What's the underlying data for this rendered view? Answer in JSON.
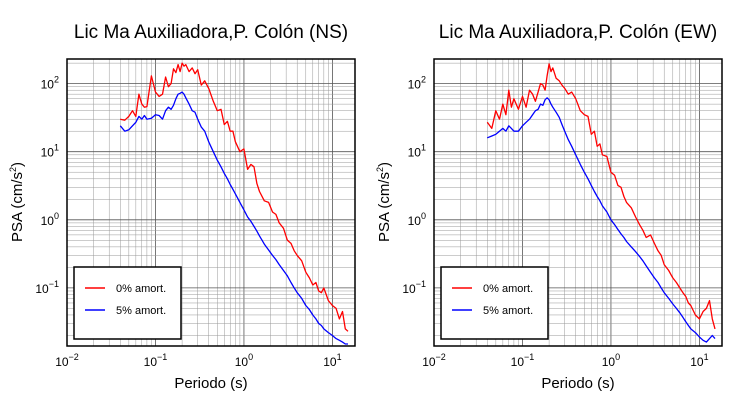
{
  "chart_data": [
    {
      "type": "line",
      "title": "Lic Ma Auxiliadora,P. Colón (NS)",
      "xlabel": "Periodo (s)",
      "ylabel": "PSA (cm/s²)",
      "ylabel_base": "PSA (cm/s",
      "ylabel_exp": "2",
      "ylabel_end": ")",
      "x_scale": "log",
      "y_scale": "log",
      "xlim": [
        0.01,
        18
      ],
      "ylim": [
        0.014,
        230
      ],
      "grid": true,
      "legend_position": "bottom-left",
      "x_ticks": [
        {
          "base": "10",
          "exp": "−2"
        },
        {
          "base": "10",
          "exp": "−1"
        },
        {
          "base": "10",
          "exp": "0"
        },
        {
          "base": "10",
          "exp": "1"
        }
      ],
      "y_ticks": [
        {
          "base": "10",
          "exp": "−1"
        },
        {
          "base": "10",
          "exp": "0"
        },
        {
          "base": "10",
          "exp": "1"
        },
        {
          "base": "10",
          "exp": "2"
        }
      ],
      "series": [
        {
          "name": "0% amort.",
          "color": "#ff0000",
          "x": [
            0.04,
            0.045,
            0.05,
            0.055,
            0.06,
            0.065,
            0.07,
            0.075,
            0.08,
            0.09,
            0.1,
            0.11,
            0.12,
            0.13,
            0.14,
            0.15,
            0.16,
            0.17,
            0.18,
            0.19,
            0.2,
            0.21,
            0.22,
            0.24,
            0.26,
            0.28,
            0.3,
            0.33,
            0.36,
            0.4,
            0.45,
            0.5,
            0.55,
            0.6,
            0.65,
            0.7,
            0.75,
            0.8,
            0.9,
            1.0,
            1.1,
            1.2,
            1.3,
            1.4,
            1.5,
            1.7,
            1.9,
            2.1,
            2.3,
            2.5,
            2.8,
            3.1,
            3.4,
            3.7,
            4.0,
            4.5,
            5.0,
            5.5,
            6.0,
            6.5,
            7.0,
            7.5,
            8.0,
            9.0,
            10.0,
            11.0,
            12.0,
            13.0,
            14.0,
            15.0
          ],
          "y": [
            30,
            29,
            33,
            40,
            33,
            70,
            50,
            45,
            46,
            130,
            75,
            65,
            70,
            125,
            90,
            100,
            165,
            145,
            190,
            150,
            200,
            180,
            190,
            150,
            170,
            140,
            160,
            95,
            110,
            85,
            55,
            40,
            42,
            25,
            28,
            20,
            20,
            14,
            10,
            11,
            5.5,
            6.5,
            6,
            3.4,
            2.6,
            1.9,
            1.8,
            1.3,
            1.2,
            0.9,
            0.75,
            0.5,
            0.45,
            0.35,
            0.3,
            0.25,
            0.17,
            0.14,
            0.11,
            0.12,
            0.09,
            0.085,
            0.1,
            0.065,
            0.055,
            0.05,
            0.035,
            0.045,
            0.025,
            0.023
          ]
        },
        {
          "name": "5% amort.",
          "color": "#0000ff",
          "x": [
            0.04,
            0.045,
            0.05,
            0.055,
            0.06,
            0.065,
            0.07,
            0.075,
            0.08,
            0.09,
            0.1,
            0.11,
            0.12,
            0.13,
            0.14,
            0.15,
            0.16,
            0.17,
            0.18,
            0.19,
            0.2,
            0.21,
            0.22,
            0.24,
            0.26,
            0.28,
            0.3,
            0.33,
            0.36,
            0.4,
            0.45,
            0.5,
            0.55,
            0.6,
            0.65,
            0.7,
            0.75,
            0.8,
            0.9,
            1.0,
            1.1,
            1.2,
            1.3,
            1.4,
            1.5,
            1.7,
            1.9,
            2.1,
            2.3,
            2.5,
            2.8,
            3.1,
            3.4,
            3.7,
            4.0,
            4.5,
            5.0,
            5.5,
            6.0,
            6.5,
            7.0,
            7.5,
            8.0,
            9.0,
            10.0,
            11.0,
            12.0,
            13.0,
            14.0,
            15.0
          ],
          "y": [
            24,
            20,
            21,
            24,
            27,
            33,
            30,
            34,
            30,
            31,
            35,
            34,
            30,
            40,
            45,
            42,
            48,
            60,
            70,
            72,
            75,
            70,
            62,
            50,
            40,
            38,
            30,
            23,
            20,
            14,
            10,
            7.5,
            6,
            4.8,
            4,
            3.3,
            2.8,
            2.4,
            1.8,
            1.4,
            1.1,
            0.95,
            0.8,
            0.68,
            0.58,
            0.44,
            0.36,
            0.3,
            0.26,
            0.22,
            0.18,
            0.15,
            0.12,
            0.1,
            0.085,
            0.07,
            0.055,
            0.048,
            0.04,
            0.035,
            0.03,
            0.028,
            0.025,
            0.022,
            0.02,
            0.018,
            0.017,
            0.016,
            0.015,
            0.015
          ]
        }
      ]
    },
    {
      "type": "line",
      "title": "Lic Ma Auxiliadora,P. Colón (EW)",
      "xlabel": "Periodo (s)",
      "ylabel": "PSA (cm/s²)",
      "ylabel_base": "PSA (cm/s",
      "ylabel_exp": "2",
      "ylabel_end": ")",
      "x_scale": "log",
      "y_scale": "log",
      "xlim": [
        0.01,
        18
      ],
      "ylim": [
        0.014,
        230
      ],
      "grid": true,
      "legend_position": "bottom-left",
      "x_ticks": [
        {
          "base": "10",
          "exp": "−2"
        },
        {
          "base": "10",
          "exp": "−1"
        },
        {
          "base": "10",
          "exp": "0"
        },
        {
          "base": "10",
          "exp": "1"
        }
      ],
      "y_ticks": [
        {
          "base": "10",
          "exp": "−1"
        },
        {
          "base": "10",
          "exp": "0"
        },
        {
          "base": "10",
          "exp": "1"
        },
        {
          "base": "10",
          "exp": "2"
        }
      ],
      "series": [
        {
          "name": "0% amort.",
          "color": "#ff0000",
          "x": [
            0.04,
            0.045,
            0.05,
            0.055,
            0.06,
            0.065,
            0.07,
            0.075,
            0.08,
            0.09,
            0.1,
            0.11,
            0.12,
            0.13,
            0.14,
            0.15,
            0.16,
            0.17,
            0.18,
            0.19,
            0.2,
            0.21,
            0.22,
            0.24,
            0.26,
            0.28,
            0.3,
            0.33,
            0.36,
            0.4,
            0.45,
            0.5,
            0.55,
            0.6,
            0.65,
            0.7,
            0.75,
            0.8,
            0.9,
            1.0,
            1.1,
            1.2,
            1.3,
            1.4,
            1.5,
            1.7,
            1.9,
            2.1,
            2.3,
            2.5,
            2.8,
            3.1,
            3.4,
            3.7,
            4.0,
            4.5,
            5.0,
            5.5,
            6.0,
            6.5,
            7.0,
            7.5,
            8.0,
            9.0,
            10.0,
            11.0,
            12.0,
            13.0,
            14.0,
            15.0
          ],
          "y": [
            27,
            22,
            40,
            30,
            50,
            35,
            80,
            45,
            60,
            42,
            65,
            45,
            80,
            70,
            55,
            75,
            100,
            95,
            80,
            130,
            195,
            150,
            170,
            120,
            110,
            95,
            85,
            70,
            75,
            60,
            40,
            35,
            33,
            18,
            20,
            12,
            13,
            9,
            8.5,
            5,
            4.5,
            3.2,
            3,
            2.2,
            1.8,
            1.5,
            1.1,
            0.85,
            0.7,
            0.55,
            0.6,
            0.45,
            0.35,
            0.3,
            0.22,
            0.18,
            0.14,
            0.12,
            0.1,
            0.085,
            0.075,
            0.06,
            0.055,
            0.04,
            0.035,
            0.045,
            0.05,
            0.065,
            0.035,
            0.025
          ]
        },
        {
          "name": "5% amort.",
          "color": "#0000ff",
          "x": [
            0.04,
            0.045,
            0.05,
            0.055,
            0.06,
            0.065,
            0.07,
            0.075,
            0.08,
            0.09,
            0.1,
            0.11,
            0.12,
            0.13,
            0.14,
            0.15,
            0.16,
            0.17,
            0.18,
            0.19,
            0.2,
            0.21,
            0.22,
            0.24,
            0.26,
            0.28,
            0.3,
            0.33,
            0.36,
            0.4,
            0.45,
            0.5,
            0.55,
            0.6,
            0.65,
            0.7,
            0.75,
            0.8,
            0.9,
            1.0,
            1.1,
            1.2,
            1.3,
            1.4,
            1.5,
            1.7,
            1.9,
            2.1,
            2.3,
            2.5,
            2.8,
            3.1,
            3.4,
            3.7,
            4.0,
            4.5,
            5.0,
            5.5,
            6.0,
            6.5,
            7.0,
            7.5,
            8.0,
            9.0,
            10.0,
            11.0,
            12.0,
            13.0,
            14.0,
            15.0
          ],
          "y": [
            16,
            17,
            18,
            20,
            22,
            20,
            24,
            22,
            20,
            20,
            24,
            27,
            30,
            35,
            40,
            42,
            50,
            48,
            58,
            62,
            58,
            50,
            45,
            38,
            32,
            25,
            20,
            15,
            12,
            9,
            6.5,
            5,
            4,
            3.2,
            2.6,
            2.2,
            1.9,
            1.6,
            1.3,
            1.0,
            0.85,
            0.72,
            0.62,
            0.55,
            0.48,
            0.4,
            0.34,
            0.29,
            0.25,
            0.21,
            0.17,
            0.14,
            0.12,
            0.1,
            0.085,
            0.07,
            0.058,
            0.05,
            0.043,
            0.037,
            0.032,
            0.028,
            0.025,
            0.022,
            0.019,
            0.017,
            0.016,
            0.018,
            0.02,
            0.018
          ]
        }
      ]
    }
  ]
}
